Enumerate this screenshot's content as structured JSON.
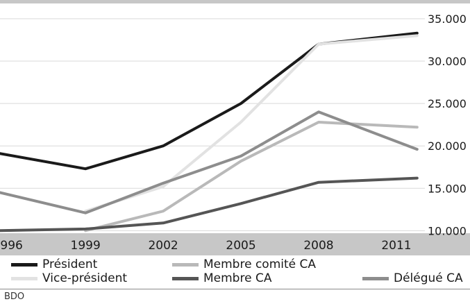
{
  "chart_data": {
    "type": "line",
    "title": "",
    "xlabel": "",
    "ylabel": "",
    "x": [
      1996,
      1999,
      2002,
      2005,
      2008,
      2011
    ],
    "x_ticks": [
      "1996",
      "1999",
      "2002",
      "2005",
      "2008",
      "2011"
    ],
    "x_range": [
      1995.7,
      2012.1
    ],
    "y_ticks": [
      "10.000",
      "15.000",
      "20.000",
      "25.000",
      "30.000",
      "35.000"
    ],
    "y_tick_values": [
      10000,
      15000,
      20000,
      25000,
      30000,
      35000
    ],
    "ylim": [
      9700,
      36800
    ],
    "grid": true,
    "legend_position": "bottom",
    "series": [
      {
        "name": "Président",
        "color": "#1a1a1a",
        "x": [
          1995.7,
          1999,
          2002,
          2005,
          2008,
          2011.8
        ],
        "values": [
          19100,
          17300,
          20000,
          25000,
          32000,
          33300
        ]
      },
      {
        "name": "Vice-président",
        "color": "#e2e2e2",
        "x": [
          1999,
          2002,
          2005,
          2008,
          2011.8
        ],
        "values": [
          12300,
          15200,
          22800,
          32000,
          33000
        ]
      },
      {
        "name": "Membre comité CA",
        "color": "#b9b9b9",
        "x": [
          1999,
          2002,
          2005,
          2008,
          2011.8
        ],
        "values": [
          10000,
          12300,
          18200,
          22800,
          22200
        ]
      },
      {
        "name": "Membre CA",
        "color": "#555555",
        "x": [
          1995.7,
          1999,
          2002,
          2005,
          2008,
          2011.8
        ],
        "values": [
          10000,
          10200,
          10900,
          13200,
          15700,
          16200
        ]
      },
      {
        "name": "Délégué CA",
        "color": "#8d8d8d",
        "x": [
          1995.7,
          1999,
          2002,
          2005,
          2008,
          2011.8
        ],
        "values": [
          14500,
          12100,
          15600,
          18800,
          24000,
          19600
        ]
      }
    ]
  },
  "source": "BDO"
}
